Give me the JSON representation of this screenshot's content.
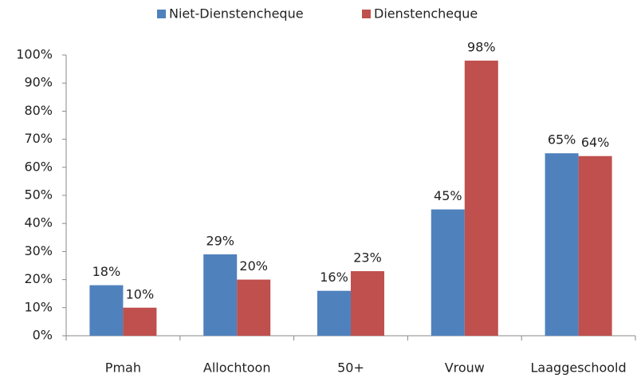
{
  "chart_data": {
    "type": "bar",
    "categories": [
      "Pmah",
      "Allochtoon",
      "50+",
      "Vrouw",
      "Laaggeschoold"
    ],
    "series": [
      {
        "name": "Niet-Dienstencheque",
        "color": "#4f81bd",
        "values": [
          18,
          29,
          16,
          45,
          65
        ],
        "value_labels": [
          "18%",
          "29%",
          "16%",
          "45%",
          "65%"
        ]
      },
      {
        "name": "Dienstencheque",
        "color": "#c0504d",
        "values": [
          10,
          20,
          23,
          98,
          64
        ],
        "value_labels": [
          "10%",
          "20%",
          "23%",
          "98%",
          "64%"
        ]
      }
    ],
    "ylim": [
      0,
      100
    ],
    "yticks": [
      {
        "value": 0,
        "label": "0%"
      },
      {
        "value": 10,
        "label": "10%"
      },
      {
        "value": 20,
        "label": "20%"
      },
      {
        "value": 30,
        "label": "30%"
      },
      {
        "value": 40,
        "label": "40%"
      },
      {
        "value": 50,
        "label": "50%"
      },
      {
        "value": 60,
        "label": "60%"
      },
      {
        "value": 70,
        "label": "70%"
      },
      {
        "value": 80,
        "label": "80%"
      },
      {
        "value": 90,
        "label": "90%"
      },
      {
        "value": 100,
        "label": "100%"
      }
    ],
    "legend": "top",
    "grid": false
  }
}
